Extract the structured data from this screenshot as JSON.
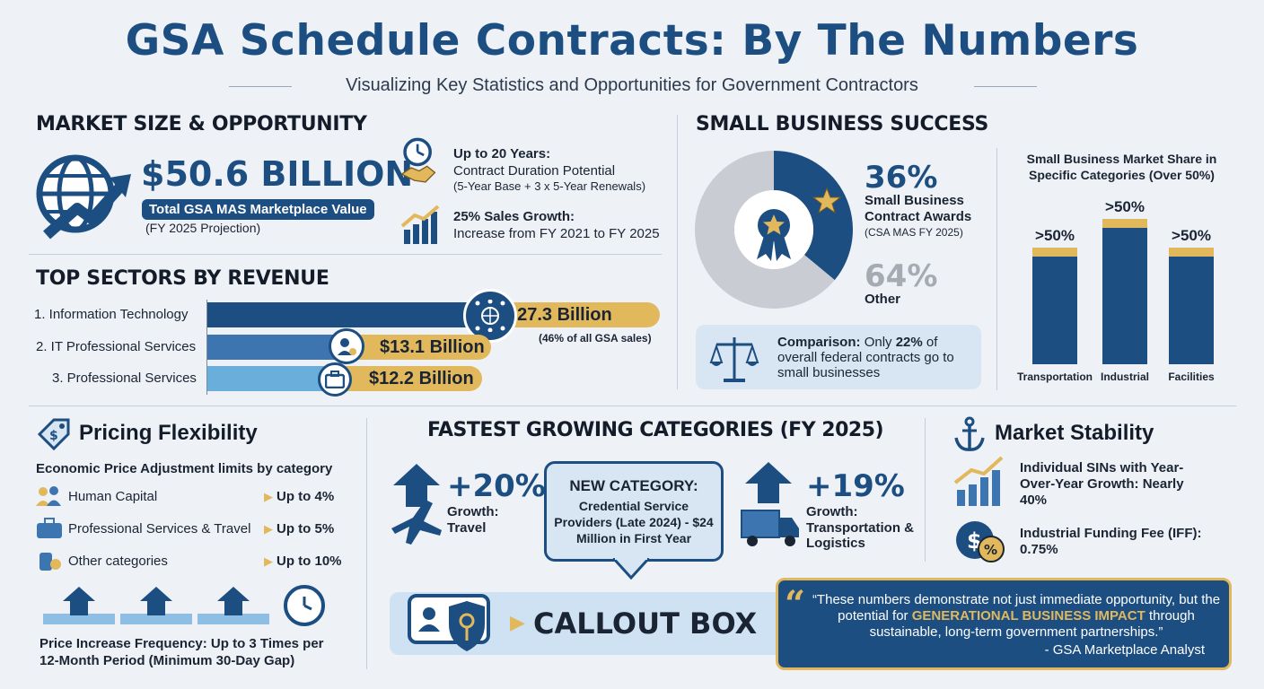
{
  "header": {
    "title": "GSA Schedule Contracts: By The Numbers",
    "subtitle": "Visualizing Key Statistics and Opportunities for Government Contractors"
  },
  "market": {
    "heading": "MARKET SIZE & OPPORTUNITY",
    "value": "$50.6 BILLION",
    "value_label": "Total GSA MAS Marketplace Value",
    "value_note": "(FY 2025 Projection)",
    "duration_title": "Up to 20 Years:",
    "duration_desc": "Contract Duration Potential",
    "duration_note": "(5-Year Base + 3 x 5-Year Renewals)",
    "growth_title": "25% Sales Growth:",
    "growth_desc": "Increase from FY 2021 to FY 2025"
  },
  "sectors": {
    "heading": "TOP SECTORS BY REVENUE",
    "items": [
      {
        "label": "1. Information Technology",
        "value": "$27.3 Billion",
        "amount": 27.3,
        "note": "(46% of all GSA sales)"
      },
      {
        "label": "2. IT Professional Services",
        "value": "$13.1 Billion",
        "amount": 13.1
      },
      {
        "label": "3. Professional Services",
        "value": "$12.2 Billion",
        "amount": 12.2
      }
    ]
  },
  "small_business": {
    "heading": "SMALL BUSINESS SUCCESS",
    "sb_pct": "36%",
    "sb_share": 36,
    "sb_label": "Small Business Contract Awards",
    "sb_note": "(CSA MAS FY 2025)",
    "other_pct": "64%",
    "other_label": "Other",
    "comparison_bold": "Comparison:",
    "comparison_text": "Only",
    "comparison_pct": "22%",
    "comparison_rest": "of overall federal contracts go to small businesses",
    "share_chart_title": "Small Business Market Share in Specific Categories (Over 50%)",
    "share_bars": [
      {
        "category": "Transportation",
        "label": ">50%"
      },
      {
        "category": "Industrial",
        "label": ">50%"
      },
      {
        "category": "Facilities",
        "label": ">50%"
      }
    ]
  },
  "pricing": {
    "heading": "Pricing Flexibility",
    "subheading": "Economic Price Adjustment limits by category",
    "rows": [
      {
        "label": "Human Capital",
        "limit": "Up to 4%"
      },
      {
        "label": "Professional Services & Travel",
        "limit": "Up to 5%"
      },
      {
        "label": "Other categories",
        "limit": "Up to 10%"
      }
    ],
    "frequency": "Price Increase Frequency: Up to 3 Times per 12-Month Period (Minimum 30-Day Gap)"
  },
  "fastest": {
    "heading": "FASTEST GROWING CATEGORIES (FY 2025)",
    "travel_pct": "+20%",
    "travel_label": "Growth:",
    "travel_cat": "Travel",
    "new_title": "NEW CATEGORY:",
    "new_desc": "Credential Service Providers (Late 2024) - $24 Million in First Year",
    "logistics_pct": "+19%",
    "logistics_label": "Growth:",
    "logistics_cat": "Transportation & Logistics",
    "callout": "CALLOUT BOX"
  },
  "stability": {
    "heading": "Market Stability",
    "sins": "Individual SINs with Year-Over-Year Growth: Nearly 40%",
    "iff": "Industrial Funding Fee (IFF): 0.75%"
  },
  "quote": {
    "part1": "“These numbers demonstrate not just immediate opportunity, but the potential for",
    "highlight": "GENERATIONAL BUSINESS IMPACT",
    "part2": "through sustainable, long-term government partnerships.”",
    "author": "- GSA Marketplace Analyst"
  },
  "colors": {
    "navy": "#1d4e82",
    "gold": "#e2b85c",
    "light_blue": "#6aaedb",
    "gray": "#c9cdd3"
  }
}
